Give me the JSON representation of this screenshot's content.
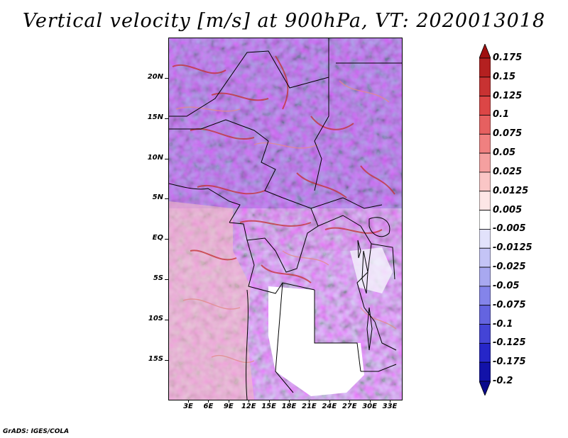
{
  "title": "Vertical velocity [m/s] at 900hPa, VT: 2020013018",
  "credit": "GrADS: IGES/COLA",
  "map": {
    "region": "Central Africa",
    "lat_labels": [
      "20N",
      "15N",
      "10N",
      "5N",
      "EQ",
      "5S",
      "10S",
      "15S"
    ],
    "lon_labels": [
      "3E",
      "6E",
      "9E",
      "12E",
      "15E",
      "18E",
      "21E",
      "24E",
      "27E",
      "30E",
      "33E"
    ],
    "field": "vertical velocity",
    "units": "m/s",
    "level": "900hPa",
    "valid_time": "2020013018"
  },
  "colorbar": {
    "labels": [
      "0.175",
      "0.15",
      "0.125",
      "0.1",
      "0.075",
      "0.05",
      "0.025",
      "0.0125",
      "0.005",
      "-0.005",
      "-0.0125",
      "-0.025",
      "-0.05",
      "-0.075",
      "-0.1",
      "-0.125",
      "-0.175",
      "-0.2"
    ],
    "colors": [
      "#a01010",
      "#b42020",
      "#c83232",
      "#dc4646",
      "#e66060",
      "#f08080",
      "#f5a0a0",
      "#fac6c6",
      "#fde6e6",
      "#ffffff",
      "#e2e2fb",
      "#c4c4f6",
      "#a8a8f0",
      "#8484ea",
      "#6464e0",
      "#4444d6",
      "#2626c8",
      "#1212a8",
      "#0a0a8c"
    ]
  }
}
